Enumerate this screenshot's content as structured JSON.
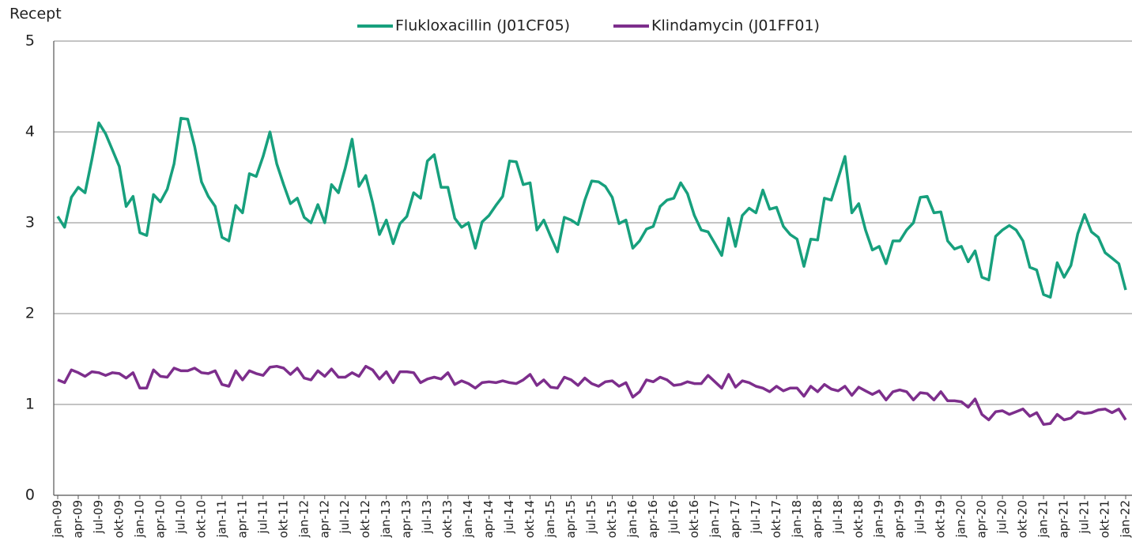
{
  "chart_data": {
    "type": "line",
    "y_label": "Recept",
    "categories": [
      "jan-09",
      null,
      null,
      "apr-09",
      null,
      null,
      "jul-09",
      null,
      null,
      "okt-09",
      null,
      null,
      "jan-10",
      null,
      null,
      "apr-10",
      null,
      null,
      "jul-10",
      null,
      null,
      "okt-10",
      null,
      null,
      "jan-11",
      null,
      null,
      "apr-11",
      null,
      null,
      "jul-11",
      null,
      null,
      "okt-11",
      null,
      null,
      "jan-12",
      null,
      null,
      "apr-12",
      null,
      null,
      "jul-12",
      null,
      null,
      "okt-12",
      null,
      null,
      "jan-13",
      null,
      null,
      "apr-13",
      null,
      null,
      "jul-13",
      null,
      null,
      "okt-13",
      null,
      null,
      "jan-14",
      null,
      null,
      "apr-14",
      null,
      null,
      "jul-14",
      null,
      null,
      "okt-14",
      null,
      null,
      "jan-15",
      null,
      null,
      "apr-15",
      null,
      null,
      "jul-15",
      null,
      null,
      "okt-15",
      null,
      null,
      "jan-16",
      null,
      null,
      "apr-16",
      null,
      null,
      "jul-16",
      null,
      null,
      "okt-16",
      null,
      null,
      "jan-17",
      null,
      null,
      "apr-17",
      null,
      null,
      "jul-17",
      null,
      null,
      "okt-17",
      null,
      null,
      "jan-18",
      null,
      null,
      "apr-18",
      null,
      null,
      "jul-18",
      null,
      null,
      "okt-18",
      null,
      null,
      "jan-19",
      null,
      null,
      "apr-19",
      null,
      null,
      "jul-19",
      null,
      null,
      "okt-19",
      null,
      null,
      "jan-20",
      null,
      null,
      "apr-20",
      null,
      null,
      "jul-20",
      null,
      null,
      "okt-20",
      null,
      null,
      "jan-21",
      null,
      null,
      "apr-21",
      null,
      null,
      "jul-21",
      null,
      null,
      "okt-21",
      null,
      null,
      "jan-22"
    ],
    "series": [
      {
        "name": "Flukloxacillin (J01CF05)",
        "color": "#17a07d",
        "values": [
          3.07,
          2.95,
          3.28,
          3.39,
          3.33,
          3.7,
          4.1,
          3.98,
          3.8,
          3.62,
          3.18,
          3.29,
          2.89,
          2.86,
          3.31,
          3.23,
          3.37,
          3.65,
          4.15,
          4.14,
          3.84,
          3.45,
          3.29,
          3.18,
          2.84,
          2.8,
          3.19,
          3.11,
          3.54,
          3.51,
          3.73,
          4.0,
          3.65,
          3.42,
          3.21,
          3.27,
          3.06,
          3.0,
          3.2,
          3.0,
          3.42,
          3.33,
          3.6,
          3.92,
          3.4,
          3.52,
          3.22,
          2.87,
          3.03,
          2.77,
          2.99,
          3.07,
          3.33,
          3.27,
          3.68,
          3.75,
          3.39,
          3.39,
          3.05,
          2.95,
          3.0,
          2.72,
          3.01,
          3.08,
          3.19,
          3.29,
          3.68,
          3.67,
          3.42,
          3.44,
          2.92,
          3.03,
          2.85,
          2.68,
          3.06,
          3.03,
          2.98,
          3.25,
          3.46,
          3.45,
          3.4,
          3.28,
          2.99,
          3.03,
          2.72,
          2.8,
          2.93,
          2.96,
          3.18,
          3.25,
          3.27,
          3.44,
          3.32,
          3.08,
          2.92,
          2.9,
          2.77,
          2.64,
          3.05,
          2.74,
          3.08,
          3.16,
          3.11,
          3.36,
          3.15,
          3.17,
          2.96,
          2.87,
          2.82,
          2.52,
          2.82,
          2.81,
          3.27,
          3.25,
          3.49,
          3.73,
          3.11,
          3.21,
          2.92,
          2.7,
          2.74,
          2.55,
          2.8,
          2.8,
          2.92,
          3.0,
          3.28,
          3.29,
          3.11,
          3.12,
          2.8,
          2.71,
          2.74,
          2.57,
          2.69,
          2.4,
          2.37,
          2.85,
          2.92,
          2.97,
          2.92,
          2.8,
          2.51,
          2.48,
          2.21,
          2.18,
          2.56,
          2.4,
          2.53,
          2.88,
          3.09,
          2.9,
          2.84,
          2.67,
          2.61,
          2.55,
          2.26
        ]
      },
      {
        "name": "Klindamycin (J01FF01)",
        "color": "#7d2e8c",
        "values": [
          1.27,
          1.24,
          1.38,
          1.35,
          1.31,
          1.36,
          1.35,
          1.32,
          1.35,
          1.34,
          1.29,
          1.35,
          1.18,
          1.18,
          1.38,
          1.31,
          1.3,
          1.4,
          1.37,
          1.37,
          1.4,
          1.35,
          1.34,
          1.37,
          1.22,
          1.2,
          1.37,
          1.27,
          1.37,
          1.34,
          1.32,
          1.41,
          1.42,
          1.4,
          1.33,
          1.4,
          1.29,
          1.27,
          1.37,
          1.31,
          1.39,
          1.3,
          1.3,
          1.35,
          1.31,
          1.42,
          1.38,
          1.28,
          1.36,
          1.24,
          1.36,
          1.36,
          1.35,
          1.24,
          1.28,
          1.3,
          1.28,
          1.35,
          1.22,
          1.26,
          1.23,
          1.18,
          1.24,
          1.25,
          1.24,
          1.26,
          1.24,
          1.23,
          1.27,
          1.33,
          1.21,
          1.27,
          1.19,
          1.18,
          1.3,
          1.27,
          1.21,
          1.29,
          1.23,
          1.2,
          1.25,
          1.26,
          1.2,
          1.24,
          1.08,
          1.14,
          1.27,
          1.25,
          1.3,
          1.27,
          1.21,
          1.22,
          1.25,
          1.23,
          1.23,
          1.32,
          1.25,
          1.18,
          1.33,
          1.19,
          1.26,
          1.24,
          1.2,
          1.18,
          1.14,
          1.2,
          1.15,
          1.18,
          1.18,
          1.09,
          1.2,
          1.14,
          1.22,
          1.17,
          1.15,
          1.2,
          1.1,
          1.19,
          1.15,
          1.11,
          1.15,
          1.05,
          1.14,
          1.16,
          1.14,
          1.05,
          1.13,
          1.12,
          1.05,
          1.14,
          1.04,
          1.04,
          1.03,
          0.97,
          1.06,
          0.89,
          0.83,
          0.92,
          0.93,
          0.89,
          0.92,
          0.95,
          0.87,
          0.91,
          0.78,
          0.79,
          0.89,
          0.83,
          0.85,
          0.92,
          0.9,
          0.91,
          0.94,
          0.95,
          0.91,
          0.95,
          0.83
        ]
      }
    ],
    "ylim": [
      0,
      5
    ],
    "yticks": [
      0,
      1,
      2,
      3,
      4,
      5
    ],
    "grid": true,
    "legend": "top"
  }
}
